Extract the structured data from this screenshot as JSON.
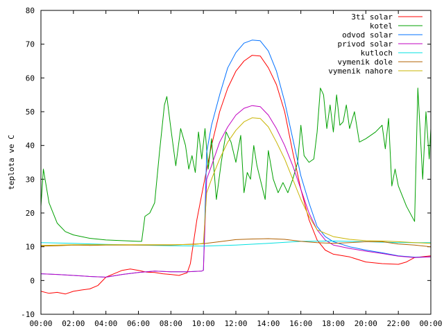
{
  "chart_data": {
    "type": "line",
    "ylabel": "teplota ve C",
    "xlabel": "",
    "title": "",
    "ylim": [
      -10,
      80
    ],
    "xlim": [
      0,
      24
    ],
    "x_ticks": [
      {
        "v": 0,
        "label": "00:00"
      },
      {
        "v": 2,
        "label": "02:00"
      },
      {
        "v": 4,
        "label": "04:00"
      },
      {
        "v": 6,
        "label": "06:00"
      },
      {
        "v": 8,
        "label": "08:00"
      },
      {
        "v": 10,
        "label": "10:00"
      },
      {
        "v": 12,
        "label": "12:00"
      },
      {
        "v": 14,
        "label": "14:00"
      },
      {
        "v": 16,
        "label": "16:00"
      },
      {
        "v": 18,
        "label": "18:00"
      },
      {
        "v": 20,
        "label": "20:00"
      },
      {
        "v": 22,
        "label": "22:00"
      },
      {
        "v": 24,
        "label": "00:00"
      }
    ],
    "y_ticks": [
      {
        "v": -10,
        "label": "-10"
      },
      {
        "v": 0,
        "label": "0"
      },
      {
        "v": 10,
        "label": "10"
      },
      {
        "v": 20,
        "label": "20"
      },
      {
        "v": 30,
        "label": "30"
      },
      {
        "v": 40,
        "label": "40"
      },
      {
        "v": 50,
        "label": "50"
      },
      {
        "v": 60,
        "label": "60"
      },
      {
        "v": 70,
        "label": "70"
      },
      {
        "v": 80,
        "label": "80"
      }
    ],
    "grid": false,
    "legend_position": "top-right",
    "series": [
      {
        "name": "3ti solar",
        "color": "#ff0000",
        "points": [
          [
            0,
            -3.2
          ],
          [
            0.5,
            -3.8
          ],
          [
            1,
            -3.5
          ],
          [
            1.5,
            -4
          ],
          [
            2,
            -3.2
          ],
          [
            2.5,
            -2.8
          ],
          [
            3,
            -2.5
          ],
          [
            3.5,
            -1.5
          ],
          [
            4,
            1
          ],
          [
            4.5,
            2
          ],
          [
            5,
            3
          ],
          [
            5.5,
            3.4
          ],
          [
            6,
            3
          ],
          [
            6.5,
            2.5
          ],
          [
            7,
            2.4
          ],
          [
            7.5,
            2
          ],
          [
            8,
            1.8
          ],
          [
            8.5,
            1.5
          ],
          [
            9,
            2.3
          ],
          [
            9.2,
            5
          ],
          [
            9.6,
            18
          ],
          [
            10,
            28
          ],
          [
            10.5,
            40
          ],
          [
            11,
            50
          ],
          [
            11.5,
            57
          ],
          [
            12,
            62
          ],
          [
            12.5,
            65
          ],
          [
            13,
            66.7
          ],
          [
            13.5,
            66.5
          ],
          [
            14,
            63
          ],
          [
            14.5,
            58
          ],
          [
            15,
            50
          ],
          [
            15.5,
            38
          ],
          [
            16,
            27
          ],
          [
            16.5,
            18
          ],
          [
            17,
            12
          ],
          [
            17.5,
            9
          ],
          [
            18,
            7.8
          ],
          [
            19,
            7
          ],
          [
            20,
            5.5
          ],
          [
            21,
            5
          ],
          [
            22,
            4.8
          ],
          [
            22.5,
            5.5
          ],
          [
            23,
            6.8
          ],
          [
            24,
            7.3
          ]
        ]
      },
      {
        "name": "kotel",
        "color": "#00a000",
        "points": [
          [
            0,
            22
          ],
          [
            0.15,
            33
          ],
          [
            0.5,
            23
          ],
          [
            1,
            17
          ],
          [
            1.5,
            14.5
          ],
          [
            2,
            13.5
          ],
          [
            3,
            12.5
          ],
          [
            4,
            12
          ],
          [
            5,
            11.8
          ],
          [
            6,
            11.6
          ],
          [
            6.2,
            11.6
          ],
          [
            6.4,
            19
          ],
          [
            6.7,
            20
          ],
          [
            7,
            23
          ],
          [
            7.3,
            38
          ],
          [
            7.6,
            52
          ],
          [
            7.75,
            54.5
          ],
          [
            8,
            45
          ],
          [
            8.3,
            34
          ],
          [
            8.6,
            45
          ],
          [
            8.9,
            40
          ],
          [
            9.1,
            33
          ],
          [
            9.3,
            37
          ],
          [
            9.5,
            32
          ],
          [
            9.7,
            44
          ],
          [
            9.9,
            36
          ],
          [
            10.1,
            45
          ],
          [
            10.3,
            33
          ],
          [
            10.5,
            42
          ],
          [
            10.8,
            24
          ],
          [
            11.1,
            35
          ],
          [
            11.4,
            44
          ],
          [
            11.7,
            41
          ],
          [
            12,
            35
          ],
          [
            12.3,
            43
          ],
          [
            12.5,
            26
          ],
          [
            12.7,
            32
          ],
          [
            12.9,
            30
          ],
          [
            13.1,
            40
          ],
          [
            13.3,
            34
          ],
          [
            13.5,
            30
          ],
          [
            13.8,
            24
          ],
          [
            14,
            38.5
          ],
          [
            14.3,
            30
          ],
          [
            14.6,
            26
          ],
          [
            14.9,
            29
          ],
          [
            15.2,
            26
          ],
          [
            15.5,
            30
          ],
          [
            15.8,
            35
          ],
          [
            16,
            46
          ],
          [
            16.2,
            37
          ],
          [
            16.5,
            35
          ],
          [
            16.8,
            36
          ],
          [
            17,
            44
          ],
          [
            17.2,
            57
          ],
          [
            17.4,
            55
          ],
          [
            17.6,
            45
          ],
          [
            17.8,
            52
          ],
          [
            18,
            44
          ],
          [
            18.2,
            55
          ],
          [
            18.4,
            46
          ],
          [
            18.6,
            47
          ],
          [
            18.8,
            52
          ],
          [
            19,
            45
          ],
          [
            19.3,
            50
          ],
          [
            19.6,
            41
          ],
          [
            20,
            42
          ],
          [
            20.3,
            43
          ],
          [
            20.6,
            44
          ],
          [
            21,
            46
          ],
          [
            21.2,
            39
          ],
          [
            21.4,
            48
          ],
          [
            21.6,
            28
          ],
          [
            21.8,
            33
          ],
          [
            22,
            28
          ],
          [
            22.5,
            22
          ],
          [
            23,
            17.5
          ],
          [
            23.2,
            57
          ],
          [
            23.5,
            30
          ],
          [
            23.7,
            50
          ],
          [
            23.9,
            36
          ],
          [
            24.1,
            54
          ],
          [
            24.3,
            33
          ],
          [
            24.5,
            50
          ],
          [
            24.7,
            31
          ],
          [
            24.9,
            38
          ],
          [
            25.1,
            36
          ]
        ]
      },
      {
        "name": "odvod solar",
        "color": "#0070ff",
        "points": [
          [
            0,
            2
          ],
          [
            1,
            1.8
          ],
          [
            2,
            1.5
          ],
          [
            3,
            1.2
          ],
          [
            4,
            1
          ],
          [
            5,
            1.8
          ],
          [
            6,
            2.4
          ],
          [
            7,
            2.8
          ],
          [
            8,
            2.6
          ],
          [
            9,
            2.6
          ],
          [
            9.9,
            2.8
          ],
          [
            10,
            3
          ],
          [
            10.2,
            38
          ],
          [
            10.5,
            46
          ],
          [
            11,
            55
          ],
          [
            11.5,
            63
          ],
          [
            12,
            67.5
          ],
          [
            12.5,
            70.3
          ],
          [
            13,
            71.2
          ],
          [
            13.5,
            71
          ],
          [
            14,
            68
          ],
          [
            14.5,
            62
          ],
          [
            15,
            53
          ],
          [
            15.5,
            42
          ],
          [
            16,
            31
          ],
          [
            16.5,
            23
          ],
          [
            17,
            16
          ],
          [
            17.5,
            13
          ],
          [
            18,
            11.5
          ],
          [
            19,
            10
          ],
          [
            20,
            9
          ],
          [
            21,
            8.2
          ],
          [
            22,
            7.3
          ],
          [
            23,
            6.9
          ],
          [
            24,
            7
          ]
        ]
      },
      {
        "name": "privod solar",
        "color": "#c000c0",
        "points": [
          [
            0,
            2
          ],
          [
            1,
            1.8
          ],
          [
            2,
            1.5
          ],
          [
            3,
            1.2
          ],
          [
            4,
            1
          ],
          [
            5,
            1.8
          ],
          [
            6,
            2.4
          ],
          [
            7,
            2.8
          ],
          [
            8,
            2.6
          ],
          [
            9,
            2.6
          ],
          [
            9.9,
            2.8
          ],
          [
            10,
            3
          ],
          [
            10.2,
            30
          ],
          [
            10.5,
            34
          ],
          [
            11,
            41
          ],
          [
            11.5,
            45.5
          ],
          [
            12,
            49
          ],
          [
            12.5,
            51
          ],
          [
            13,
            51.8
          ],
          [
            13.5,
            51.5
          ],
          [
            14,
            49
          ],
          [
            14.5,
            45
          ],
          [
            15,
            40
          ],
          [
            15.5,
            34
          ],
          [
            16,
            27
          ],
          [
            16.5,
            20
          ],
          [
            17,
            15
          ],
          [
            17.5,
            12
          ],
          [
            18,
            10.5
          ],
          [
            19,
            9.5
          ],
          [
            20,
            8.7
          ],
          [
            21,
            8
          ],
          [
            22,
            7.2
          ],
          [
            23,
            6.8
          ],
          [
            24,
            7
          ]
        ]
      },
      {
        "name": "kutloch",
        "color": "#00e0e0",
        "points": [
          [
            0,
            11.2
          ],
          [
            2,
            11
          ],
          [
            4,
            10.7
          ],
          [
            6,
            10.5
          ],
          [
            8,
            10.3
          ],
          [
            10,
            10.2
          ],
          [
            12,
            10.5
          ],
          [
            14,
            11
          ],
          [
            16,
            11.6
          ],
          [
            18,
            11.7
          ],
          [
            20,
            11.5
          ],
          [
            22,
            11.2
          ],
          [
            24,
            11.2
          ]
        ]
      },
      {
        "name": "vymenik dole",
        "color": "#b06000",
        "points": [
          [
            0,
            10.2
          ],
          [
            1,
            10.3
          ],
          [
            2,
            10.5
          ],
          [
            3,
            10.4
          ],
          [
            4,
            10.5
          ],
          [
            6,
            10.5
          ],
          [
            8,
            10.5
          ],
          [
            9,
            10.7
          ],
          [
            10,
            10.9
          ],
          [
            11,
            11.5
          ],
          [
            12,
            12.1
          ],
          [
            13,
            12.3
          ],
          [
            14,
            12.4
          ],
          [
            15,
            12.2
          ],
          [
            16,
            11.6
          ],
          [
            17,
            11.2
          ],
          [
            18,
            11
          ],
          [
            19,
            11.2
          ],
          [
            20,
            11.5
          ],
          [
            21,
            11.5
          ],
          [
            22,
            10.8
          ],
          [
            23,
            10.5
          ],
          [
            24,
            10
          ]
        ]
      },
      {
        "name": "vymenik nahore",
        "color": "#c8b400",
        "points": [
          [
            0,
            10.4
          ],
          [
            2,
            10.6
          ],
          [
            4,
            10.6
          ],
          [
            6,
            10.6
          ],
          [
            8,
            10.6
          ],
          [
            9.5,
            10.7
          ],
          [
            10,
            11
          ],
          [
            10.2,
            26
          ],
          [
            10.5,
            30
          ],
          [
            11,
            36
          ],
          [
            11.5,
            41
          ],
          [
            12,
            44.5
          ],
          [
            12.5,
            47
          ],
          [
            13,
            48.2
          ],
          [
            13.5,
            48
          ],
          [
            14,
            45.5
          ],
          [
            14.5,
            41
          ],
          [
            15,
            36
          ],
          [
            15.5,
            30
          ],
          [
            16,
            24
          ],
          [
            16.5,
            19
          ],
          [
            17,
            15
          ],
          [
            17.5,
            14
          ],
          [
            18,
            13
          ],
          [
            19,
            12.2
          ],
          [
            20,
            11.8
          ],
          [
            21,
            11.7
          ],
          [
            22,
            11.5
          ],
          [
            23,
            11.2
          ],
          [
            24,
            11
          ]
        ]
      }
    ]
  }
}
